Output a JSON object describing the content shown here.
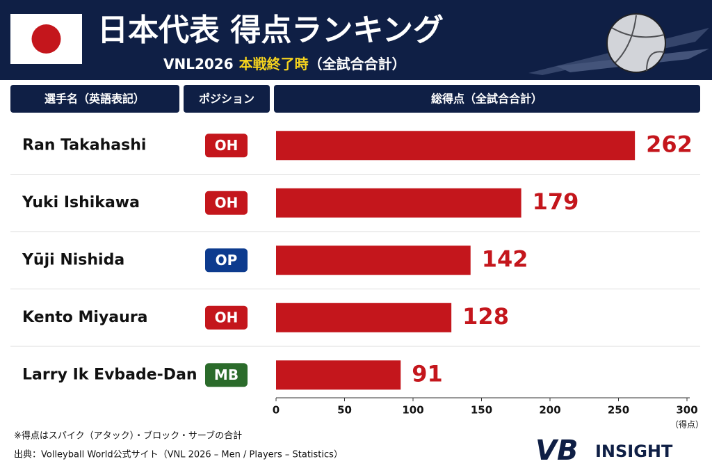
{
  "chart_data": {
    "type": "bar",
    "orientation": "horizontal",
    "title": "日本代表 得点ランキング",
    "subtitle": [
      "VNL2026",
      "本戦終了時",
      "（全試合合計）"
    ],
    "column_headers": [
      "選手名（英語表記）",
      "ポジション",
      "総得点（全試合合計）"
    ],
    "categories": [
      "Ran Takahashi",
      "Yuki Ishikawa",
      "Yūji Nishida",
      "Kento Miyaura",
      "Larry Ik Evbade-Dan"
    ],
    "positions": [
      {
        "label": "OH",
        "color": "#c4161c"
      },
      {
        "label": "OH",
        "color": "#c4161c"
      },
      {
        "label": "OP",
        "color": "#0d3b8e"
      },
      {
        "label": "OH",
        "color": "#c4161c"
      },
      {
        "label": "MB",
        "color": "#2b6b2b"
      }
    ],
    "values": [
      262,
      179,
      142,
      128,
      91
    ],
    "color": "#c4161c",
    "xlim": [
      0,
      300
    ],
    "xticks": [
      0,
      50,
      100,
      150,
      200,
      250,
      300
    ],
    "x_unit": "（得点）",
    "notes": [
      "※得点はスパイク（アタック）・ブロック・サーブの合計",
      "出典：Volleyball World公式サイト（VNL 2026 – Men / Players – Statistics）"
    ],
    "logo": [
      "VB",
      "INSIGHT"
    ]
  }
}
